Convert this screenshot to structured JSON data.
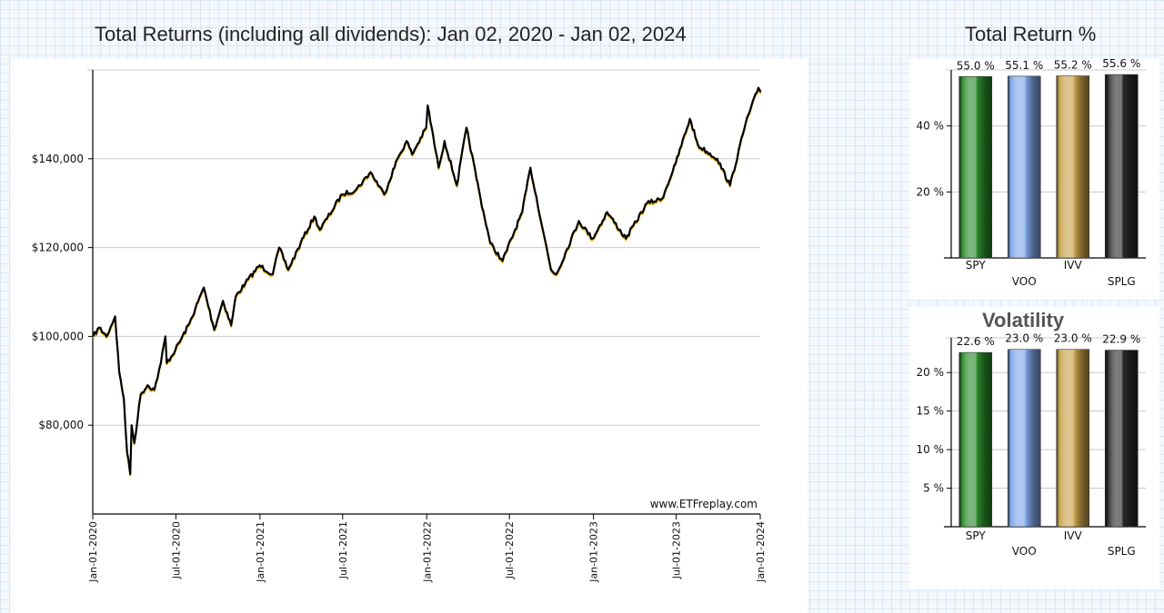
{
  "titles": {
    "main": "Total Returns (including all dividends): Jan 02, 2020 - Jan 02, 2024",
    "total_return": "Total Return %",
    "volatility": "Volatility"
  },
  "watermark": "www.ETFreplay.com",
  "chart_data": [
    {
      "type": "line",
      "title": "Total Returns (including all dividends): Jan 02, 2020 - Jan 02, 2024",
      "y_tick_labels": [
        "$80,000",
        "$100,000",
        "$120,000",
        "$140,000"
      ],
      "y_ticks": [
        80000,
        100000,
        120000,
        140000
      ],
      "ylim": [
        60000,
        160000
      ],
      "x_tick_labels": [
        "Jan-01-2020",
        "Jul-01-2020",
        "Jan-01-2021",
        "Jul-01-2021",
        "Jan-01-2022",
        "Jul-01-2022",
        "Jan-01-2023",
        "Jul-01-2023",
        "Jan-01-2024"
      ],
      "xlim": [
        "2020-01-01",
        "2024-01-01"
      ],
      "grid": "horizontal",
      "series_colors": [
        "#e0a800",
        "#000000"
      ],
      "series": [
        {
          "points": [
            [
              "2020-01-02",
              100000
            ],
            [
              "2020-01-15",
              102000
            ],
            [
              "2020-01-31",
              100000
            ],
            [
              "2020-02-19",
              104500
            ],
            [
              "2020-02-28",
              92000
            ],
            [
              "2020-03-09",
              86000
            ],
            [
              "2020-03-16",
              74000
            ],
            [
              "2020-03-23",
              69000
            ],
            [
              "2020-03-26",
              80000
            ],
            [
              "2020-04-01",
              76000
            ],
            [
              "2020-04-15",
              87000
            ],
            [
              "2020-04-30",
              89000
            ],
            [
              "2020-05-15",
              88000
            ],
            [
              "2020-05-29",
              94000
            ],
            [
              "2020-06-08",
              100000
            ],
            [
              "2020-06-11",
              94000
            ],
            [
              "2020-06-30",
              97000
            ],
            [
              "2020-07-31",
              103000
            ],
            [
              "2020-08-31",
              111000
            ],
            [
              "2020-09-23",
              101500
            ],
            [
              "2020-10-12",
              108000
            ],
            [
              "2020-10-30",
              102500
            ],
            [
              "2020-11-09",
              109000
            ],
            [
              "2020-11-30",
              112000
            ],
            [
              "2020-12-31",
              116000
            ],
            [
              "2021-01-29",
              114000
            ],
            [
              "2021-02-12",
              120000
            ],
            [
              "2021-03-04",
              115000
            ],
            [
              "2021-03-31",
              121000
            ],
            [
              "2021-04-30",
              127000
            ],
            [
              "2021-05-12",
              124000
            ],
            [
              "2021-06-30",
              132000
            ],
            [
              "2021-07-30",
              133000
            ],
            [
              "2021-08-31",
              137000
            ],
            [
              "2021-09-30",
              132000
            ],
            [
              "2021-10-29",
              140000
            ],
            [
              "2021-11-18",
              144000
            ],
            [
              "2021-11-30",
              141000
            ],
            [
              "2021-12-31",
              147000
            ],
            [
              "2022-01-03",
              152000
            ],
            [
              "2022-01-27",
              138000
            ],
            [
              "2022-02-09",
              144000
            ],
            [
              "2022-03-08",
              134000
            ],
            [
              "2022-03-29",
              147000
            ],
            [
              "2022-04-29",
              131000
            ],
            [
              "2022-05-20",
              121000
            ],
            [
              "2022-06-16",
              117000
            ],
            [
              "2022-07-29",
              128000
            ],
            [
              "2022-08-16",
              138000
            ],
            [
              "2022-09-30",
              115000
            ],
            [
              "2022-10-12",
              114000
            ],
            [
              "2022-11-30",
              126000
            ],
            [
              "2022-12-30",
              122000
            ],
            [
              "2023-01-31",
              128000
            ],
            [
              "2023-03-13",
              122000
            ],
            [
              "2023-04-28",
              130000
            ],
            [
              "2023-05-31",
              131000
            ],
            [
              "2023-06-30",
              139000
            ],
            [
              "2023-07-31",
              149000
            ],
            [
              "2023-08-18",
              143000
            ],
            [
              "2023-09-29",
              140000
            ],
            [
              "2023-10-27",
              134000
            ],
            [
              "2023-11-30",
              148000
            ],
            [
              "2023-12-28",
              156000
            ],
            [
              "2024-01-02",
              155000
            ]
          ]
        }
      ]
    },
    {
      "type": "bar",
      "title": "Total Return %",
      "categories": [
        "SPY",
        "VOO",
        "IVV",
        "SPLG"
      ],
      "values": [
        55.0,
        55.1,
        55.2,
        55.6
      ],
      "value_labels": [
        "55.0 %",
        "55.1 %",
        "55.2 %",
        "55.6 %"
      ],
      "y_tick_labels": [
        "20 %",
        "40 %"
      ],
      "y_ticks": [
        20,
        40
      ],
      "ylim": [
        0,
        57
      ],
      "grid": "horizontal",
      "bar_colors": [
        "#2a8a2a",
        "#7fa6e8",
        "#c9a34a",
        "#2a2a2a"
      ]
    },
    {
      "type": "bar",
      "title": "Volatility",
      "categories": [
        "SPY",
        "VOO",
        "IVV",
        "SPLG"
      ],
      "values": [
        22.6,
        23.0,
        23.0,
        22.9
      ],
      "value_labels": [
        "22.6 %",
        "23.0 %",
        "23.0 %",
        "22.9 %"
      ],
      "y_tick_labels": [
        "5 %",
        "10 %",
        "15 %",
        "20 %"
      ],
      "y_ticks": [
        5,
        10,
        15,
        20
      ],
      "ylim": [
        0,
        24.5
      ],
      "grid": "horizontal",
      "bar_colors": [
        "#2a8a2a",
        "#7fa6e8",
        "#c9a34a",
        "#2a2a2a"
      ]
    }
  ]
}
